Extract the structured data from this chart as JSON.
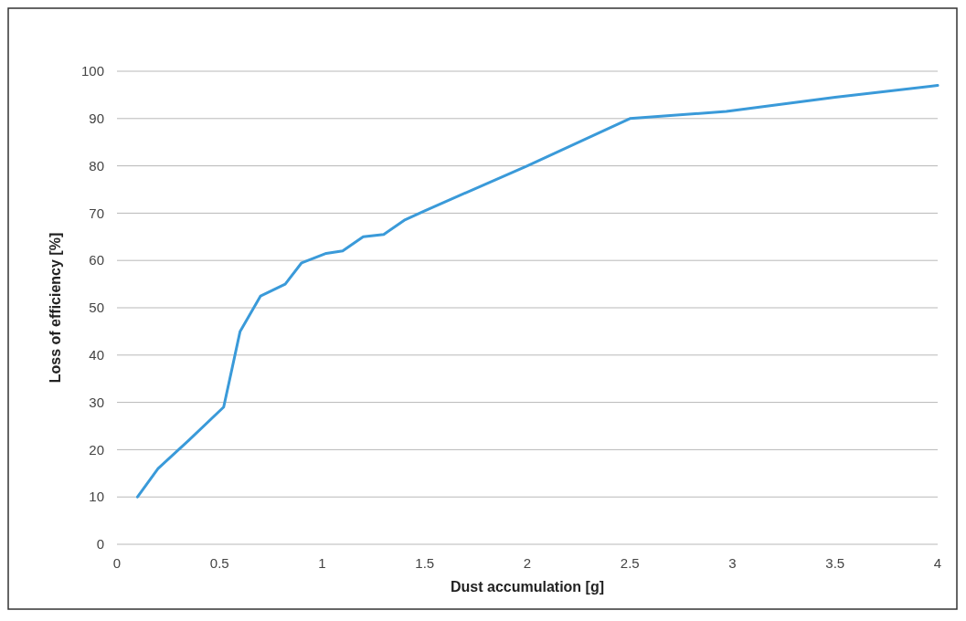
{
  "chart_data": {
    "type": "line",
    "xlabel": "Dust accumulation [g]",
    "ylabel": "Loss of efficiency [%]",
    "x": [
      0.1,
      0.2,
      0.35,
      0.52,
      0.6,
      0.7,
      0.82,
      0.9,
      1.02,
      1.1,
      1.2,
      1.3,
      1.4,
      1.5,
      2.0,
      2.35,
      2.5,
      2.97,
      3.5,
      4.0
    ],
    "series": [
      {
        "color": "#3a9ad9",
        "values": [
          10,
          16,
          22,
          29,
          45,
          52.5,
          55,
          59.5,
          61.5,
          62,
          65,
          65.5,
          68.5,
          70.5,
          80,
          87,
          90,
          91.5,
          94.5,
          97
        ]
      }
    ],
    "xlim": [
      0,
      4
    ],
    "xticks": [
      0,
      0.5,
      1,
      1.5,
      2,
      2.5,
      3,
      3.5,
      4
    ],
    "ylim": [
      0,
      100
    ],
    "yticks": [
      0,
      10,
      20,
      30,
      40,
      50,
      60,
      70,
      80,
      90,
      100
    ],
    "grid": "y",
    "marker": "none",
    "line_style": "solid"
  }
}
